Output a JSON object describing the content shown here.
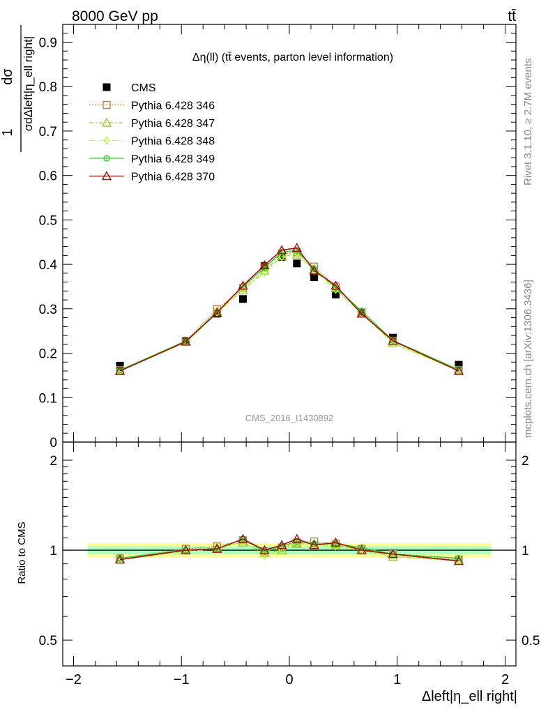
{
  "header": {
    "energy_label": "8000 GeV pp",
    "process_label": "tt̄",
    "plot_title": "Δη(ll) (tt̄ events, parton level information)",
    "watermark": "CMS_2016_I1430892",
    "side_label_top": "Rivet 3.1.10, ≥ 2.7M events",
    "side_label_bottom": "mcplots.cern.ch [arXiv:1306.3436]"
  },
  "axes": {
    "top_ylabel_num": "dσ",
    "top_ylabel_den": "σdΔleft|η_ell right|",
    "top_ylabel_one": "1",
    "bottom_ylabel": "Ratio to CMS",
    "xlabel": "Δleft|η_ell right|"
  },
  "chart_data": [
    {
      "type": "line",
      "panel": "main",
      "title": "Δη(ll) (tt̄ events, parton level information)",
      "xlim": [
        -2.1,
        2.1
      ],
      "ylim": [
        0,
        0.94
      ],
      "xticks": [
        -2,
        -1,
        0,
        1,
        2
      ],
      "xtick_labels": [
        "−2",
        "−1",
        "0",
        "1",
        "2"
      ],
      "yticks": [
        0,
        0.1,
        0.2,
        0.3,
        0.4,
        0.5,
        0.6,
        0.7,
        0.8,
        0.9
      ],
      "ytick_labels": [
        "0",
        "0.1",
        "0.2",
        "0.3",
        "0.4",
        "0.5",
        "0.6",
        "0.7",
        "0.8",
        "0.9"
      ],
      "x": [
        -1.57,
        -0.96,
        -0.67,
        -0.43,
        -0.23,
        -0.07,
        0.07,
        0.23,
        0.43,
        0.67,
        0.96,
        1.57
      ],
      "legend_position": "top-left",
      "grid": false,
      "series": [
        {
          "name": "CMS",
          "style": "data",
          "color": "#000000",
          "marker": "square-filled",
          "values": [
            0.172,
            0.226,
            0.289,
            0.322,
            0.396,
            0.417,
            0.402,
            0.371,
            0.332,
            0.29,
            0.235,
            0.174
          ]
        },
        {
          "name": "Pythia 6.428 346",
          "color": "#b8864b",
          "dash": "2,2",
          "marker": "square-open",
          "values": [
            0.162,
            0.228,
            0.299,
            0.347,
            0.393,
            0.424,
            0.427,
            0.395,
            0.35,
            0.292,
            0.228,
            0.162
          ]
        },
        {
          "name": "Pythia 6.428 347",
          "color": "#9acd32",
          "dash": "6,3,2,3",
          "marker": "triangle-open",
          "values": [
            0.161,
            0.226,
            0.294,
            0.341,
            0.386,
            0.419,
            0.422,
            0.389,
            0.346,
            0.291,
            0.224,
            0.161
          ]
        },
        {
          "name": "Pythia 6.428 348",
          "color": "#adff2f",
          "dash": "8,3,2,3",
          "marker": "diamond-open",
          "values": [
            0.16,
            0.224,
            0.291,
            0.344,
            0.381,
            0.417,
            0.425,
            0.385,
            0.343,
            0.289,
            0.222,
            0.16
          ]
        },
        {
          "name": "Pythia 6.428 349",
          "color": "#32cd32",
          "dash": "",
          "marker": "circle-cross",
          "values": [
            0.162,
            0.227,
            0.293,
            0.35,
            0.392,
            0.428,
            0.431,
            0.39,
            0.348,
            0.295,
            0.229,
            0.163
          ]
        },
        {
          "name": "Pythia 6.428 370",
          "color": "#a01010",
          "dash": "",
          "marker": "triangle-open",
          "values": [
            0.16,
            0.226,
            0.291,
            0.352,
            0.398,
            0.432,
            0.437,
            0.386,
            0.352,
            0.289,
            0.228,
            0.16
          ]
        }
      ]
    },
    {
      "type": "line",
      "panel": "ratio",
      "ylabel": "Ratio to CMS",
      "xlabel": "Δleft|η_ell right|",
      "xlim": [
        -2.1,
        2.1
      ],
      "ylim": [
        0.41,
        2.3
      ],
      "log_scale_y": true,
      "yticks": [
        0.5,
        1,
        2
      ],
      "ytick_labels": [
        "0.5",
        "1",
        "2"
      ],
      "band": {
        "outer": 0.055,
        "inner": 0.03,
        "colors": [
          "#ffff99",
          "#99ffcc"
        ]
      },
      "reference_line": 1,
      "x": [
        -1.57,
        -0.96,
        -0.67,
        -0.43,
        -0.23,
        -0.07,
        0.07,
        0.23,
        0.43,
        0.67,
        0.96,
        1.57
      ],
      "series": [
        {
          "name": "Pythia 6.428 346",
          "values": [
            0.94,
            1.01,
            1.03,
            1.08,
            0.99,
            1.02,
            1.06,
            1.07,
            1.05,
            1.01,
            0.97,
            0.93
          ]
        },
        {
          "name": "Pythia 6.428 347",
          "values": [
            0.94,
            1.0,
            1.02,
            1.06,
            0.98,
            1.0,
            1.05,
            1.05,
            1.04,
            1.0,
            0.95,
            0.93
          ]
        },
        {
          "name": "Pythia 6.428 348",
          "values": [
            0.93,
            0.99,
            1.01,
            1.07,
            0.96,
            1.0,
            1.06,
            1.04,
            1.03,
            1.0,
            0.95,
            0.92
          ]
        },
        {
          "name": "Pythia 6.428 349",
          "values": [
            0.94,
            1.0,
            1.01,
            1.09,
            0.99,
            1.03,
            1.07,
            1.05,
            1.05,
            1.02,
            0.97,
            0.94
          ]
        },
        {
          "name": "Pythia 6.428 370",
          "values": [
            0.93,
            1.0,
            1.01,
            1.09,
            1.0,
            1.04,
            1.09,
            1.04,
            1.06,
            1.0,
            0.97,
            0.92
          ]
        }
      ]
    }
  ]
}
